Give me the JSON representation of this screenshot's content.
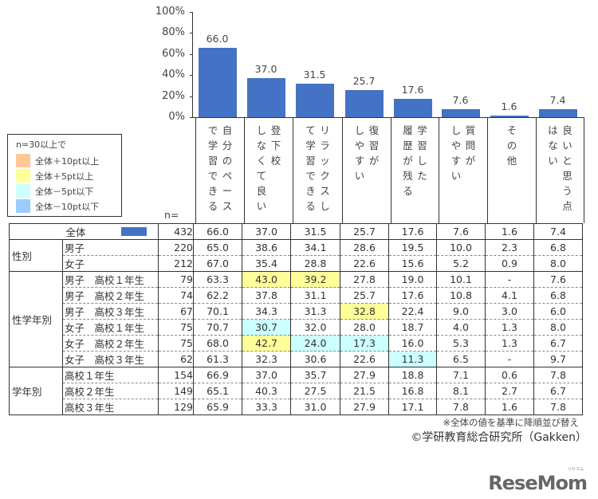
{
  "chart_data": {
    "type": "bar",
    "title": "",
    "xlabel": "",
    "ylabel": "",
    "ylim": [
      0,
      100
    ],
    "y_ticks": [
      "100%",
      "80%",
      "60%",
      "40%",
      "20%",
      "0%"
    ],
    "categories": [
      "自分のペースで学習できる",
      "登下校しなくて良い",
      "リラックスして学習できる",
      "復習がしやすい",
      "学習した履歴が残る",
      "質問がしやすい",
      "その他",
      "良いと思う点はない"
    ],
    "values": [
      66.0,
      37.0,
      31.5,
      25.7,
      17.6,
      7.6,
      1.6,
      7.4
    ],
    "data_labels": [
      "66.0",
      "37.0",
      "31.5",
      "25.7",
      "17.6",
      "7.6",
      "1.6",
      "7.4"
    ],
    "bar_color": "#4472C4",
    "grid": false,
    "legend_position": "left",
    "table": {
      "n_header": "n=",
      "rows": [
        {
          "group": "全体",
          "sub": "",
          "n": "432",
          "values": [
            "66.0",
            "37.0",
            "31.5",
            "25.7",
            "17.6",
            "7.6",
            "1.6",
            "7.4"
          ],
          "hl": [
            "",
            "",
            "",
            "",
            "",
            "",
            "",
            ""
          ]
        },
        {
          "group": "性別",
          "sub": "男子",
          "n": "220",
          "values": [
            "65.0",
            "38.6",
            "34.1",
            "28.6",
            "19.5",
            "10.0",
            "2.3",
            "6.8"
          ],
          "hl": [
            "",
            "",
            "",
            "",
            "",
            "",
            "",
            ""
          ]
        },
        {
          "group": "性別",
          "sub": "女子",
          "n": "212",
          "values": [
            "67.0",
            "35.4",
            "28.8",
            "22.6",
            "15.6",
            "5.2",
            "0.9",
            "8.0"
          ],
          "hl": [
            "",
            "",
            "",
            "",
            "",
            "",
            "",
            ""
          ]
        },
        {
          "group": "性学年別",
          "sub": "男子　高校１年生",
          "n": "79",
          "values": [
            "63.3",
            "43.0",
            "39.2",
            "27.8",
            "19.0",
            "10.1",
            "-",
            "7.6"
          ],
          "hl": [
            "",
            "yellow",
            "yellow",
            "",
            "",
            "",
            "",
            ""
          ]
        },
        {
          "group": "性学年別",
          "sub": "男子　高校２年生",
          "n": "74",
          "values": [
            "62.2",
            "37.8",
            "31.1",
            "25.7",
            "17.6",
            "10.8",
            "4.1",
            "6.8"
          ],
          "hl": [
            "",
            "",
            "",
            "",
            "",
            "",
            "",
            ""
          ]
        },
        {
          "group": "性学年別",
          "sub": "男子　高校３年生",
          "n": "67",
          "values": [
            "70.1",
            "34.3",
            "31.3",
            "32.8",
            "22.4",
            "9.0",
            "3.0",
            "6.0"
          ],
          "hl": [
            "",
            "",
            "",
            "yellow",
            "",
            "",
            "",
            ""
          ]
        },
        {
          "group": "性学年別",
          "sub": "女子　高校１年生",
          "n": "75",
          "values": [
            "70.7",
            "30.7",
            "32.0",
            "28.0",
            "18.7",
            "4.0",
            "1.3",
            "8.0"
          ],
          "hl": [
            "",
            "cyan",
            "",
            "",
            "",
            "",
            "",
            ""
          ]
        },
        {
          "group": "性学年別",
          "sub": "女子　高校２年生",
          "n": "75",
          "values": [
            "68.0",
            "42.7",
            "24.0",
            "17.3",
            "16.0",
            "5.3",
            "1.3",
            "6.7"
          ],
          "hl": [
            "",
            "yellow",
            "cyan",
            "cyan",
            "",
            "",
            "",
            ""
          ]
        },
        {
          "group": "性学年別",
          "sub": "女子　高校３年生",
          "n": "62",
          "values": [
            "61.3",
            "32.3",
            "30.6",
            "22.6",
            "11.3",
            "6.5",
            "-",
            "9.7"
          ],
          "hl": [
            "",
            "",
            "",
            "",
            "cyan",
            "",
            "",
            ""
          ]
        },
        {
          "group": "学年別",
          "sub": "高校１年生",
          "n": "154",
          "values": [
            "66.9",
            "37.0",
            "35.7",
            "27.9",
            "18.8",
            "7.1",
            "0.6",
            "7.8"
          ],
          "hl": [
            "",
            "",
            "",
            "",
            "",
            "",
            "",
            ""
          ]
        },
        {
          "group": "学年別",
          "sub": "高校２年生",
          "n": "149",
          "values": [
            "65.1",
            "40.3",
            "27.5",
            "21.5",
            "16.8",
            "8.1",
            "2.7",
            "6.7"
          ],
          "hl": [
            "",
            "",
            "",
            "",
            "",
            "",
            "",
            ""
          ]
        },
        {
          "group": "学年別",
          "sub": "高校３年生",
          "n": "129",
          "values": [
            "65.9",
            "33.3",
            "31.0",
            "27.9",
            "17.1",
            "7.8",
            "1.6",
            "7.8"
          ],
          "hl": [
            "",
            "",
            "",
            "",
            "",
            "",
            "",
            ""
          ]
        }
      ]
    }
  },
  "legend": {
    "title": "n=30以上で",
    "items": [
      {
        "label": "全体＋10pt以上",
        "color": "#FFC896"
      },
      {
        "label": "全体＋5pt以上",
        "color": "#FFFF99"
      },
      {
        "label": "全体－5pt以下",
        "color": "#CCFFFF"
      },
      {
        "label": "全体－10pt以下",
        "color": "#99CCFF"
      }
    ]
  },
  "category_columns": [
    [
      [
        "自",
        "分",
        "の",
        "ペ",
        "ー",
        "ス"
      ],
      [
        "で",
        "学",
        "習",
        "で",
        "き",
        "る"
      ]
    ],
    [
      [
        "登",
        "下",
        "校"
      ],
      [
        "し",
        "な",
        "く",
        "て",
        "良",
        "い"
      ]
    ],
    [
      [
        "リ",
        "ラ",
        "ッ",
        "ク",
        "ス",
        "し"
      ],
      [
        "て",
        "学",
        "習",
        "で",
        "き",
        "る"
      ]
    ],
    [
      [
        "復",
        "習",
        "が"
      ],
      [
        "し",
        "や",
        "す",
        "い"
      ]
    ],
    [
      [
        "学",
        "習",
        "し",
        "た"
      ],
      [
        "履",
        "歴",
        "が",
        "残",
        "る"
      ]
    ],
    [
      [
        "質",
        "問",
        "が"
      ],
      [
        "し",
        "や",
        "す",
        "い"
      ]
    ],
    [
      [
        "そ",
        "の",
        "他"
      ]
    ],
    [
      [
        "良",
        "い",
        "と",
        "思",
        "う",
        "点"
      ],
      [
        "は",
        "な",
        "い"
      ]
    ]
  ],
  "groups": {
    "total": "全体",
    "gender": "性別",
    "gender_grade": "性学年別",
    "grade": "学年別"
  },
  "footnote": "※全体の値を基準に降順並び替え",
  "copyright": "©学研教育総合研究所（Gakken）",
  "logo": "ReseMom",
  "logo_kana": "リセマム"
}
